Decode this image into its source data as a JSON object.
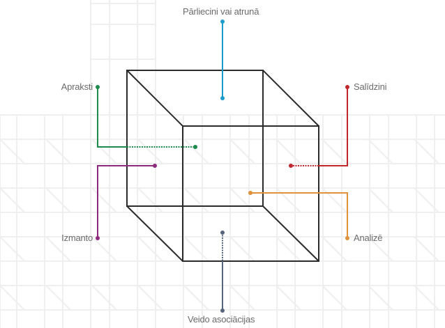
{
  "labels": {
    "top": "Pārliecini vai atrunā",
    "top_left": "Apraksti",
    "top_right": "Salīdzini",
    "bottom_left": "Izmanto",
    "bottom_right": "Analizē",
    "bottom": "Veido asociācijas"
  },
  "colors": {
    "top": "#1a9ccc",
    "top_left": "#1e8a4c",
    "top_right": "#c0272d",
    "bottom_left": "#8e2a7e",
    "bottom_right": "#e0913a",
    "bottom": "#56647d",
    "cube": "#2b2b2b",
    "text": "#6b6b6b"
  }
}
